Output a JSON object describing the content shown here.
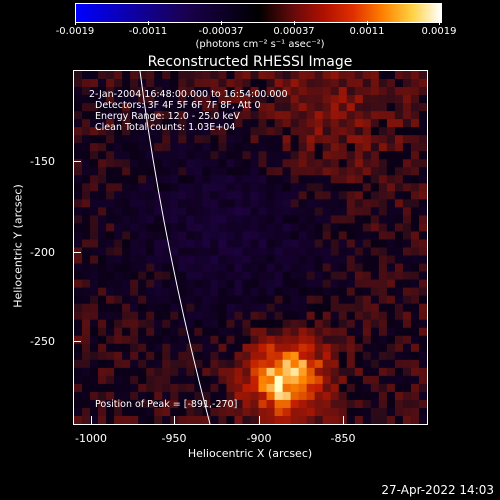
{
  "colorbar": {
    "tick_labels": [
      "-0.0019",
      "-0.0011",
      "-0.00037",
      "0.00037",
      "0.0011",
      "0.0019"
    ],
    "units": "(photons cm⁻² s⁻¹ asec⁻²)"
  },
  "title": "Reconstructed RHESSI Image",
  "info": {
    "time": "2-Jan-2004 16:48:00.000 to 16:54:00.000",
    "detectors": "Detectors: 3F 4F 5F 6F 7F 8F, Att 0",
    "energy": "Energy Range: 12.0 - 25.0 keV",
    "method": "Clean    Total counts: 1.03E+04",
    "peak": "Position of Peak = [-891,-270]"
  },
  "axes": {
    "xlabel": "Heliocentric X (arcsec)",
    "ylabel": "Heliocentric Y (arcsec)",
    "x_ticks": [
      "-1000",
      "-950",
      "-900",
      "-850"
    ],
    "y_ticks": [
      "-150",
      "-200",
      "-250"
    ],
    "x_range": [
      -1005,
      -815
    ],
    "y_range": [
      -295,
      -105
    ]
  },
  "peak": {
    "x": -891,
    "y": -270
  },
  "timestamp": "27-Apr-2022 14:03"
}
